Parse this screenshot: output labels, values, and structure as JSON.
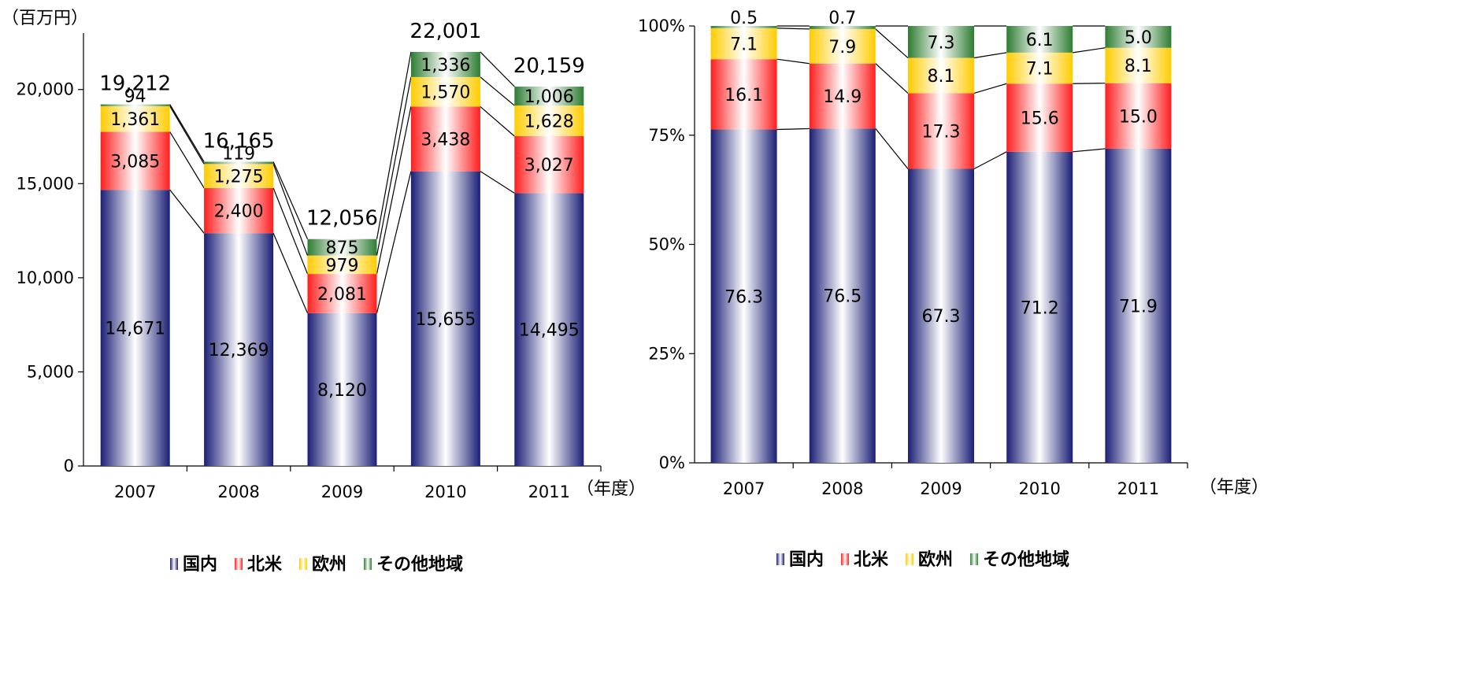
{
  "colors": {
    "domestic_dark": "#1b1f75",
    "na_dark": "#ff1e1e",
    "eu_dark": "#ffcc00",
    "other_dark": "#2e7d32"
  },
  "legend": [
    {
      "name": "国内",
      "color": "#1b1f75"
    },
    {
      "name": "北米",
      "color": "#ff1e1e"
    },
    {
      "name": "欧州",
      "color": "#ffcc00"
    },
    {
      "name": "その他地域",
      "color": "#2e7d32"
    }
  ],
  "chart_data": [
    {
      "type": "bar",
      "stacked": true,
      "unit_label": "（百万円）",
      "x_unit_label": "（年度）",
      "categories": [
        "2007",
        "2008",
        "2009",
        "2010",
        "2011"
      ],
      "series": [
        {
          "name": "国内",
          "values": [
            14671,
            12369,
            8120,
            15655,
            14495
          ],
          "labels": [
            "14,671",
            "12,369",
            "8,120",
            "15,655",
            "14,495"
          ]
        },
        {
          "name": "北米",
          "values": [
            3085,
            2400,
            2081,
            3438,
            3027
          ],
          "labels": [
            "3,085",
            "2,400",
            "2,081",
            "3,438",
            "3,027"
          ]
        },
        {
          "name": "欧州",
          "values": [
            1361,
            1275,
            979,
            1570,
            1628
          ],
          "labels": [
            "1,361",
            "1,275",
            "979",
            "1,570",
            "1,628"
          ]
        },
        {
          "name": "その他地域",
          "values": [
            94,
            119,
            875,
            1336,
            1006
          ],
          "labels": [
            "94",
            "119",
            "875",
            "1,336",
            "1,006"
          ]
        }
      ],
      "totals": [
        "19,212",
        "16,165",
        "12,056",
        "22,001",
        "20,159"
      ],
      "ylim": [
        0,
        23000
      ],
      "yticks": [
        0,
        5000,
        10000,
        15000,
        20000
      ],
      "ytick_labels": [
        "0",
        "5,000",
        "10,000",
        "15,000",
        "20,000"
      ],
      "grid": false
    },
    {
      "type": "bar",
      "stacked": true,
      "percent": true,
      "x_unit_label": "（年度）",
      "categories": [
        "2007",
        "2008",
        "2009",
        "2010",
        "2011"
      ],
      "series": [
        {
          "name": "国内",
          "values": [
            76.3,
            76.5,
            67.3,
            71.2,
            71.9
          ],
          "labels": [
            "76.3",
            "76.5",
            "67.3",
            "71.2",
            "71.9"
          ]
        },
        {
          "name": "北米",
          "values": [
            16.1,
            14.9,
            17.3,
            15.6,
            15.0
          ],
          "labels": [
            "16.1",
            "14.9",
            "17.3",
            "15.6",
            "15.0"
          ]
        },
        {
          "name": "欧州",
          "values": [
            7.1,
            7.9,
            8.1,
            7.1,
            8.1
          ],
          "labels": [
            "7.1",
            "7.9",
            "8.1",
            "7.1",
            "8.1"
          ]
        },
        {
          "name": "その他地域",
          "values": [
            0.5,
            0.7,
            7.3,
            6.1,
            5.0
          ],
          "labels": [
            "0.5",
            "0.7",
            "7.3",
            "6.1",
            "5.0"
          ]
        }
      ],
      "ylim": [
        0,
        100
      ],
      "yticks": [
        0,
        25,
        50,
        75,
        100
      ],
      "ytick_labels": [
        "0%",
        "25%",
        "50%",
        "75%",
        "100%"
      ],
      "grid": false
    }
  ]
}
